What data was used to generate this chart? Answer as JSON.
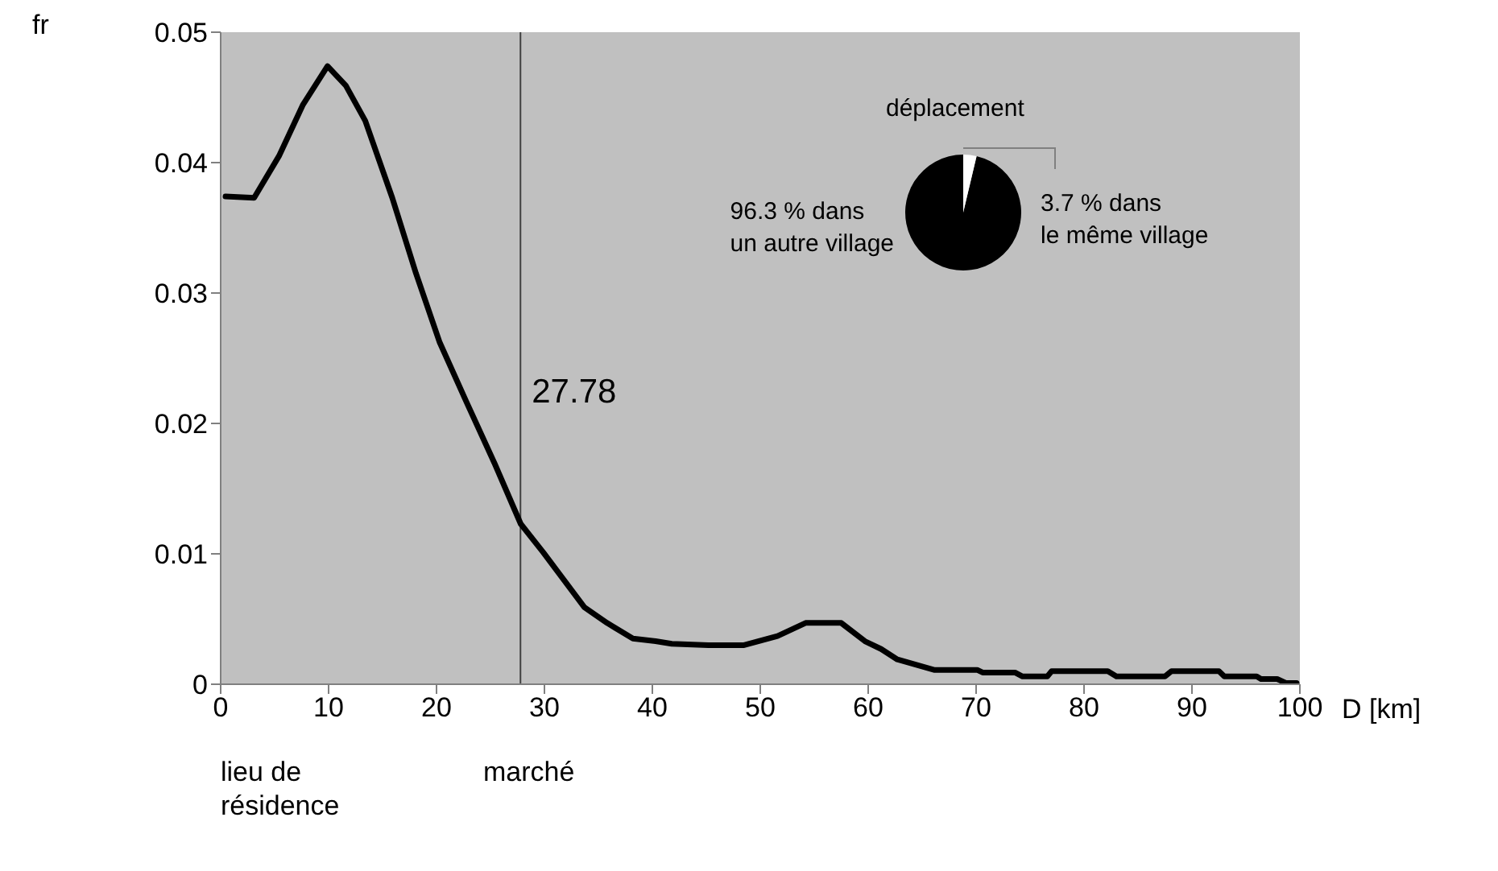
{
  "chart_data": [
    {
      "type": "line",
      "ylabel": "fr",
      "xlabel": "D [km]",
      "x": [
        0.45,
        3.1,
        5.4,
        7.6,
        9.9,
        11.6,
        13.4,
        15.9,
        18.1,
        20.3,
        22.8,
        25.4,
        27.8,
        29.9,
        31.8,
        33.7,
        35.8,
        38.2,
        40.3,
        41.8,
        45.2,
        48.5,
        51.6,
        54.2,
        57.5,
        59.7,
        61.2,
        62.7,
        66.1,
        70.1,
        70.6,
        73.6,
        74.3,
        76.6,
        77.0,
        82.2,
        83.0,
        87.5,
        88.1,
        92.5,
        93.0,
        96.0,
        96.4,
        97.9,
        98.7,
        99.7
      ],
      "series": [
        {
          "color": "#000000",
          "values": [
            0.0374,
            0.0373,
            0.0405,
            0.0444,
            0.0474,
            0.0459,
            0.0432,
            0.0373,
            0.0315,
            0.0262,
            0.0216,
            0.0169,
            0.0123,
            0.0101,
            0.008,
            0.0059,
            0.0047,
            0.0035,
            0.0033,
            0.0031,
            0.003,
            0.003,
            0.0037,
            0.0047,
            0.0047,
            0.0033,
            0.0027,
            0.0019,
            0.0011,
            0.0011,
            0.0009,
            0.0009,
            0.0006,
            0.0006,
            0.001,
            0.001,
            0.0006,
            0.0006,
            0.001,
            0.001,
            0.0006,
            0.0006,
            0.0004,
            0.0004,
            0.0001,
            0.0001
          ]
        }
      ],
      "xlim": [
        0,
        100
      ],
      "xticks": [
        0,
        10,
        20,
        30,
        40,
        50,
        60,
        70,
        80,
        90,
        100
      ],
      "ylim": [
        0,
        0.05
      ],
      "yticks": [
        0,
        0.01,
        0.02,
        0.03,
        0.04,
        0.05
      ],
      "grid": false,
      "legend": false,
      "marker": "none",
      "line_style": "solid",
      "ref_lines": [
        {
          "axis": "x",
          "value": 27.78,
          "label": "27.78",
          "color": "#404040"
        }
      ],
      "annotations": [
        "lieu de\nrésidence",
        "marché"
      ]
    },
    {
      "type": "pie",
      "title": "déplacement",
      "values": [
        96.3,
        3.7
      ],
      "colors": [
        "#000000",
        "#ffffff"
      ],
      "value_labels": [
        "96.3 % dans\nun autre village",
        "3.7 % dans\nle même village"
      ]
    }
  ]
}
